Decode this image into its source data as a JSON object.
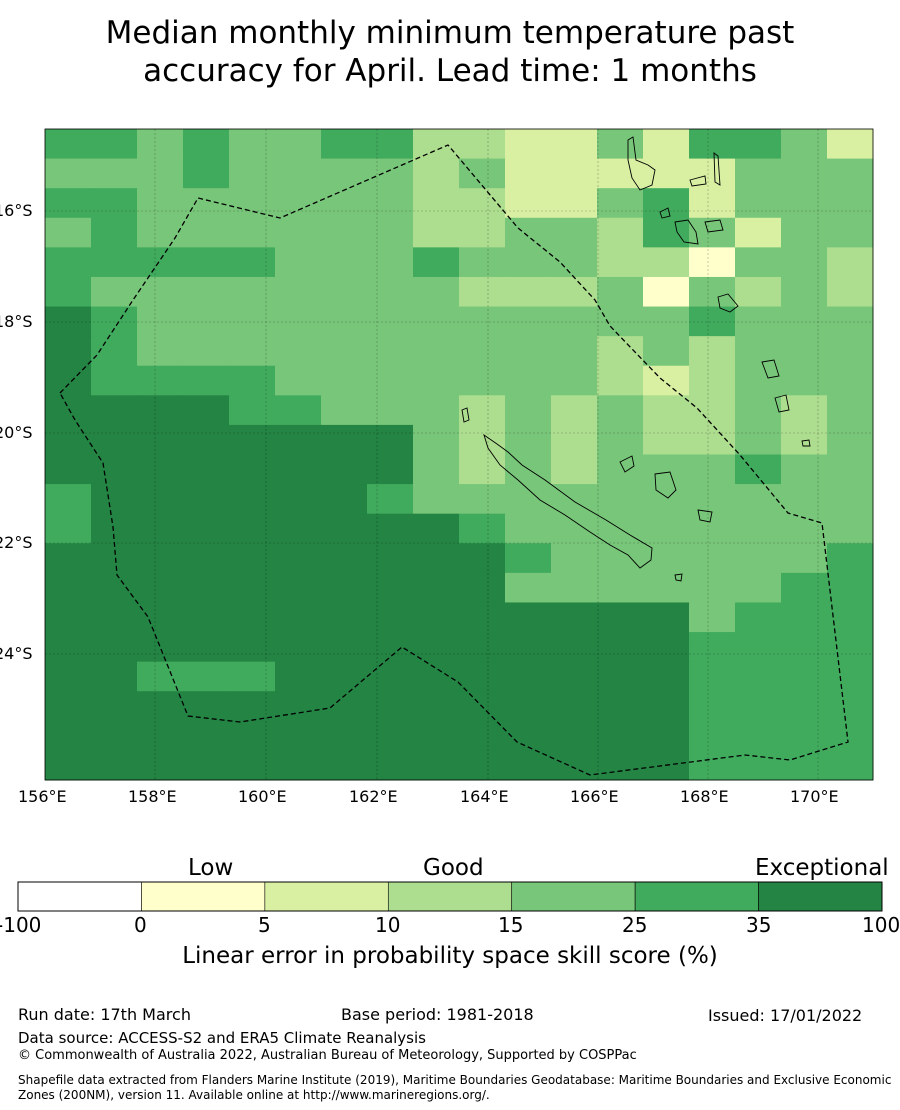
{
  "title_line1": "Median monthly minimum temperature past",
  "title_line2": "accuracy for April. Lead time: 1 months",
  "map": {
    "lat_labels": [
      "16°S",
      "18°S",
      "20°S",
      "22°S",
      "24°S"
    ],
    "lon_labels": [
      "156°E",
      "158°E",
      "160°E",
      "162°E",
      "164°E",
      "166°E",
      "168°E",
      "170°E"
    ],
    "extent": {
      "lon": [
        156,
        171
      ],
      "lat": [
        -26.5,
        -14.5
      ]
    }
  },
  "legend": {
    "categories": [
      "Low",
      "Good",
      "Exceptional"
    ],
    "ticks": [
      "-100",
      "0",
      "5",
      "10",
      "15",
      "25",
      "35",
      "100"
    ],
    "colors": [
      "#ffffff",
      "#ffffcc",
      "#d9f0a3",
      "#addd8e",
      "#78c679",
      "#41ab5d",
      "#238443"
    ],
    "label": "Linear error in probability space skill score (%)"
  },
  "footer": {
    "run_date": "Run date: 17th March",
    "base_period": "Base period: 1981-2018",
    "issued": "Issued: 17/01/2022",
    "data_source": "Data source: ACCESS-S2 and ERA5 Climate Reanalysis",
    "copyright": "© Commonwealth of Australia 2022, Australian Bureau of Meteorology, Supported by COSPPac",
    "shapefile_line1": "Shapefile data extracted from Flanders Marine Institute (2019), Maritime Boundaries Geodatabase: Maritime Boundaries and Exclusive Economic",
    "shapefile_line2": "Zones (200NM), version 11. Available online at http://www.marineregions.org/."
  }
}
